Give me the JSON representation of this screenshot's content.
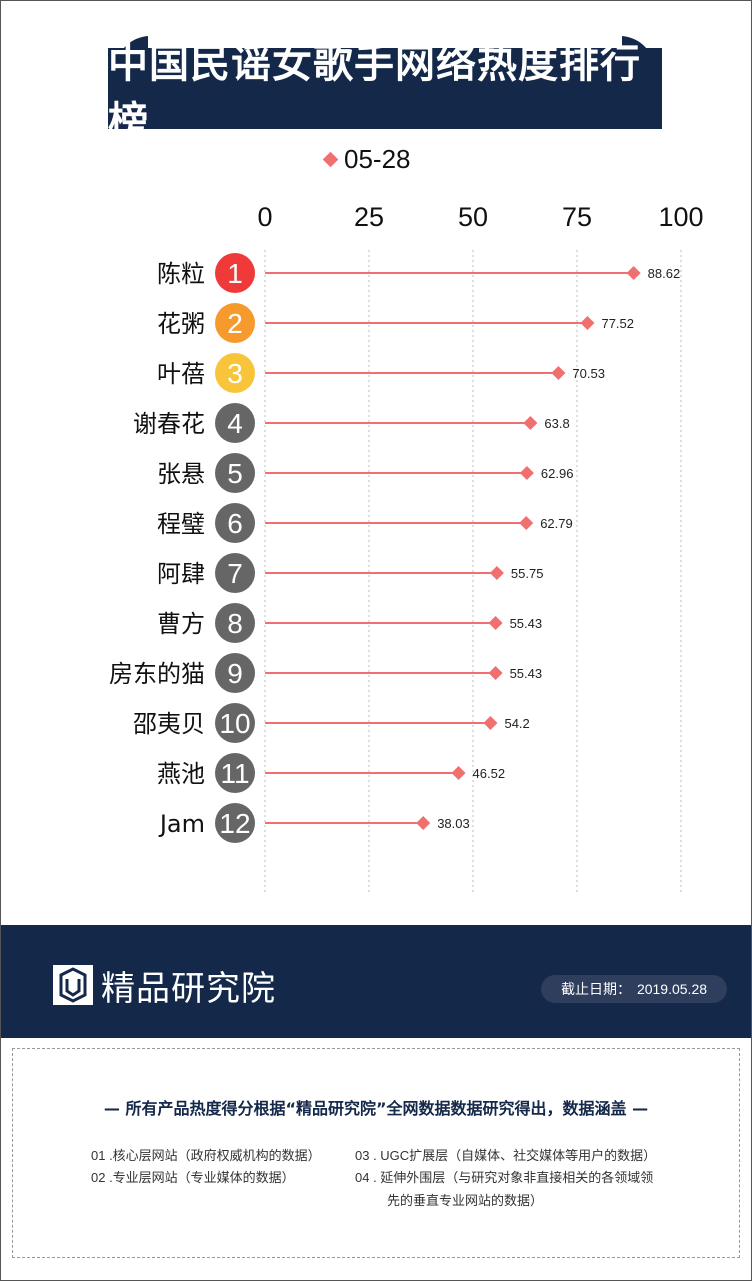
{
  "title": "中国民谣女歌手网络热度排行榜",
  "legend": {
    "label": "05-28",
    "color": "#f07070"
  },
  "chart_data": {
    "type": "bar",
    "orientation": "horizontal",
    "style": "lollipop",
    "series": [
      {
        "name": "05-28",
        "values": [
          88.62,
          77.52,
          70.53,
          63.8,
          62.96,
          62.79,
          55.75,
          55.43,
          55.43,
          54.2,
          46.52,
          38.03
        ]
      }
    ],
    "categories": [
      "陈粒",
      "花粥",
      "叶蓓",
      "谢春花",
      "张悬",
      "程璧",
      "阿肆",
      "曹方",
      "房东的猫",
      "邵夷贝",
      "燕池",
      "Jam"
    ],
    "ranks": [
      "1",
      "2",
      "3",
      "4",
      "5",
      "6",
      "7",
      "8",
      "9",
      "10",
      "11",
      "12"
    ],
    "value_labels": [
      "88.62",
      "77.52",
      "70.53",
      "63.8",
      "62.96",
      "62.79",
      "55.75",
      "55.43",
      "55.43",
      "54.2",
      "46.52",
      "38.03"
    ],
    "x_ticks": [
      "0",
      "25",
      "50",
      "75",
      "100"
    ],
    "xlim": [
      0,
      100
    ],
    "grid": "vertical dotted",
    "colors": {
      "line": "#f07070",
      "marker": "#f07070",
      "rank1": "#f03a3a",
      "rank2": "#f79a2e",
      "rank3": "#f8c53a",
      "rank_other": "#666666"
    }
  },
  "footer": {
    "brand": "精品研究院",
    "date_label": "截止日期：",
    "date_value": "2019.05.28",
    "bg_color": "#14284a"
  },
  "notes": {
    "heading": "— 所有产品热度得分根据“精品研究院”全网数据数据研究得出，数据涵盖 —",
    "items": [
      "01 .核心层网站（政府权威机构的数据）",
      "02 .专业层网站（专业媒体的数据）",
      "03 . UGC扩展层（自媒体、社交媒体等用户的数据）",
      "04 . 延伸外围层（与研究对象非直接相关的各领域领",
      "先的垂直专业网站的数据）"
    ]
  }
}
